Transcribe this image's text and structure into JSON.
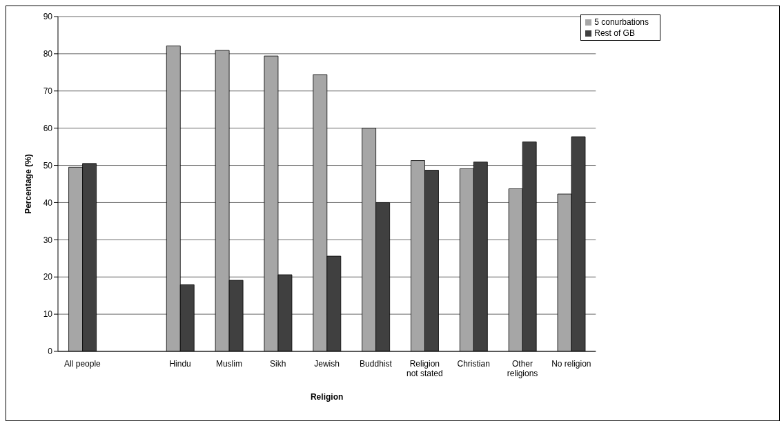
{
  "chart_data": {
    "type": "bar",
    "xlabel": "Religion",
    "ylabel": "Percentage (%)",
    "categories": [
      "All people",
      null,
      "Hindu",
      "Muslim",
      "Sikh",
      "Jewish",
      "Buddhist",
      "Religion not stated",
      "Christian",
      "Other religions",
      "No religion"
    ],
    "series": [
      {
        "name": "5 conurbations",
        "color": "#a6a6a6",
        "values": [
          49.5,
          null,
          82.1,
          80.9,
          79.4,
          74.4,
          60.0,
          51.3,
          49.1,
          43.7,
          42.3
        ]
      },
      {
        "name": "Rest of GB",
        "color": "#404040",
        "values": [
          50.5,
          null,
          17.9,
          19.1,
          20.6,
          25.6,
          40.0,
          48.7,
          50.9,
          56.3,
          57.7
        ]
      }
    ],
    "ylim": [
      0,
      90
    ],
    "yticks": [
      0,
      10,
      20,
      30,
      40,
      50,
      60,
      70,
      80,
      90
    ],
    "grid": "y",
    "legend": "top right"
  }
}
